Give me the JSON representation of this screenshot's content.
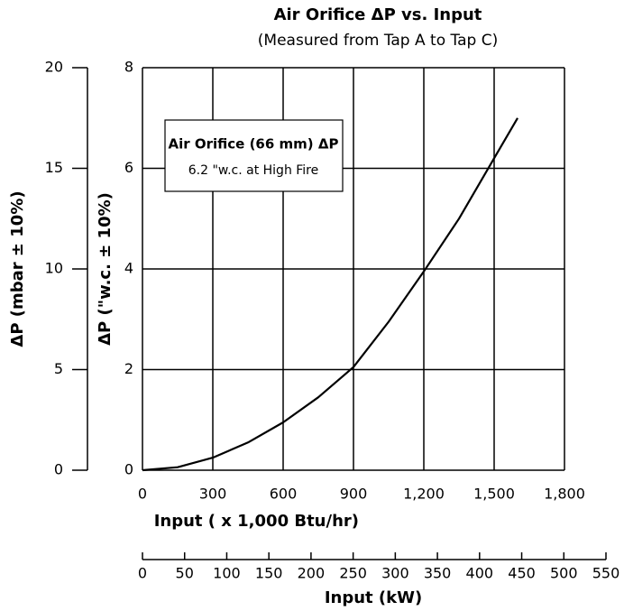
{
  "chart_data": {
    "type": "line",
    "title": "Air Orifice ΔP vs. Input",
    "subtitle": "(Measured from Tap A to Tap C)",
    "x_label": "Input  ( x 1,000 Btu/hr)",
    "y_label": "ΔP  (\"w.c. ± 10%)",
    "y2_label": "ΔP  (mbar ± 10%)",
    "x2_label": "Input (kW)",
    "annotation": {
      "title": "Air Orifice (66 mm) ΔP",
      "text": "6.2 \"w.c.  at High Fire"
    },
    "series": [
      {
        "name": "Air Orifice (66 mm) ΔP",
        "color": "#000000",
        "x": [
          0,
          150,
          300,
          450,
          600,
          750,
          900,
          1050,
          1200,
          1350,
          1500,
          1600
        ],
        "values": [
          0,
          0.06,
          0.25,
          0.55,
          0.95,
          1.45,
          2.05,
          2.95,
          3.95,
          5.0,
          6.2,
          7.0
        ]
      }
    ],
    "xlim": [
      0,
      1800
    ],
    "xticks": [
      0,
      300,
      600,
      900,
      {
        "value": 1200,
        "label": "1,200"
      },
      {
        "value": 1500,
        "label": "1,500"
      },
      {
        "value": 1800,
        "label": "1,800"
      }
    ],
    "ylim": [
      0,
      8
    ],
    "yticks": [
      0,
      2,
      4,
      6,
      8
    ],
    "y2lim": [
      0,
      20
    ],
    "y2ticks": [
      0,
      5,
      10,
      15,
      20
    ],
    "x2lim": [
      0,
      550
    ],
    "x2ticks": [
      0,
      50,
      100,
      150,
      200,
      250,
      300,
      350,
      400,
      450,
      500,
      550
    ],
    "grid": true
  }
}
